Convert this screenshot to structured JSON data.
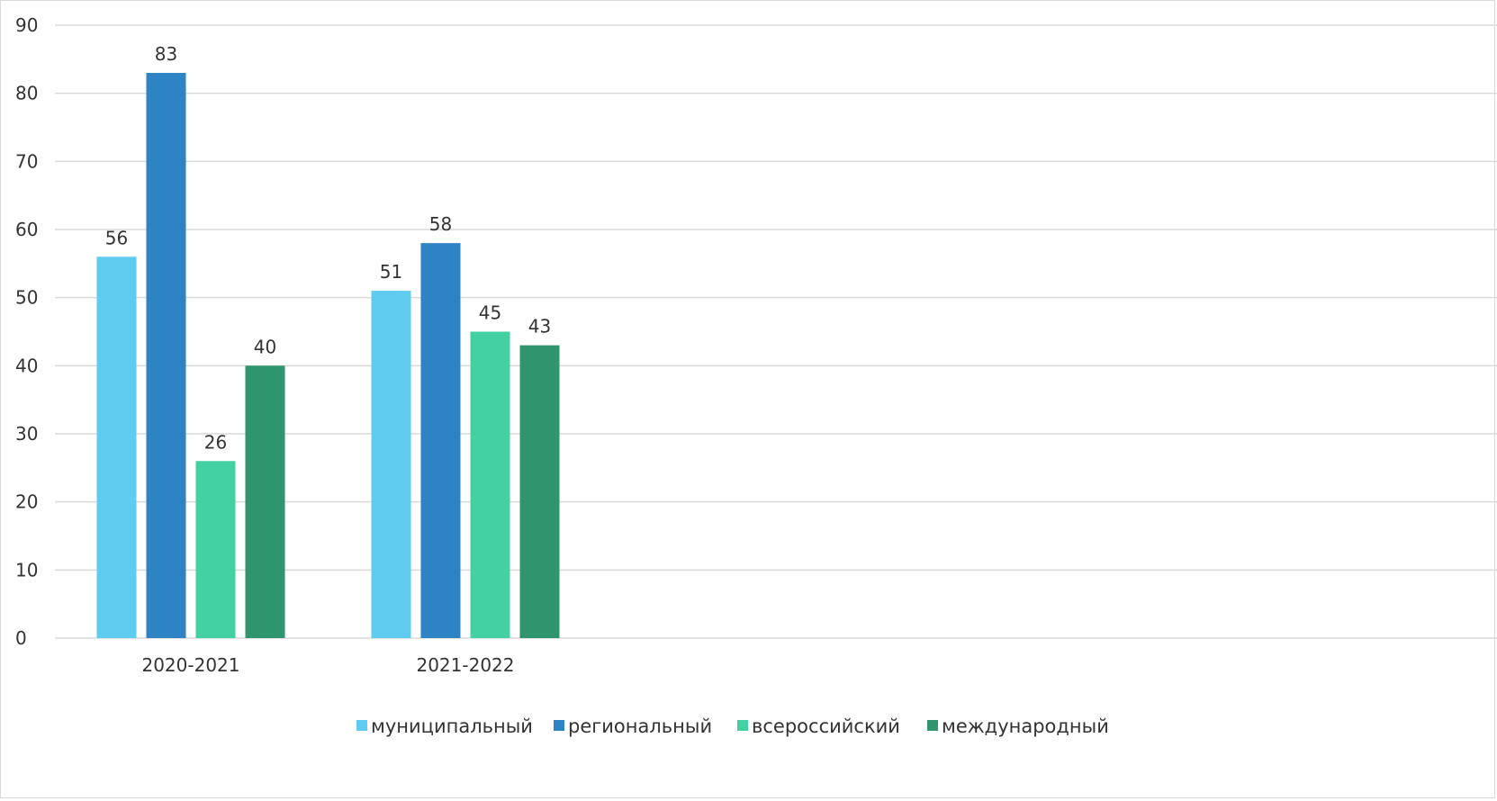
{
  "chart_data": {
    "type": "bar",
    "categories": [
      "2020-2021",
      "2021-2022"
    ],
    "series": [
      {
        "name": "муниципальный",
        "color": "#5ecbef",
        "values": [
          56,
          51
        ]
      },
      {
        "name": "региональный",
        "color": "#2e83c4",
        "values": [
          83,
          58
        ]
      },
      {
        "name": "всероссийский",
        "color": "#43d1a3",
        "values": [
          26,
          45
        ]
      },
      {
        "name": "международный",
        "color": "#2e956d",
        "values": [
          40,
          43
        ]
      }
    ],
    "ylim": [
      0,
      90
    ],
    "yticks": [
      0,
      10,
      20,
      30,
      40,
      50,
      60,
      70,
      80,
      90
    ],
    "grid": true,
    "gridColor": "#d9d9d9",
    "legendPlacement": "bottom",
    "data_labels": true,
    "title": "",
    "xlabel": "",
    "ylabel": ""
  }
}
